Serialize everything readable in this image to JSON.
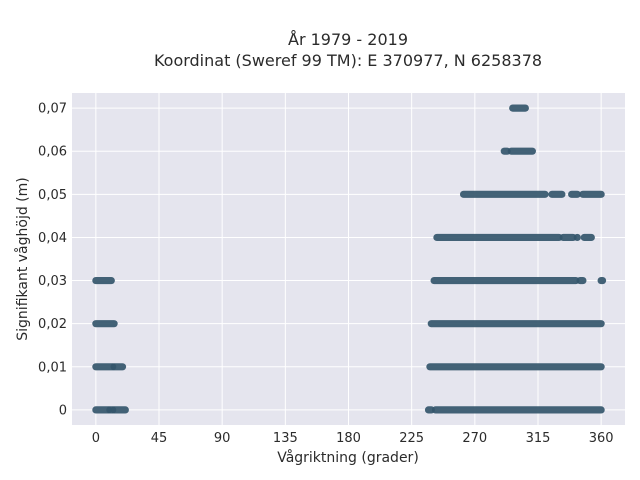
{
  "chart_data": {
    "type": "scatter",
    "title": "År 1979 - 2019",
    "subtitle": "Koordinat (Sweref 99 TM): E 370977, N 6258378",
    "xlabel": "Vågriktning (grader)",
    "ylabel": "Signifikant våghöjd (m)",
    "xlim": [
      -17,
      377
    ],
    "ylim": [
      -0.0035,
      0.0735
    ],
    "x_ticks": [
      0,
      45,
      90,
      135,
      180,
      225,
      270,
      315,
      360
    ],
    "x_tick_labels": [
      "0",
      "45",
      "90",
      "135",
      "180",
      "225",
      "270",
      "315",
      "360"
    ],
    "y_ticks": [
      0,
      0.01,
      0.02,
      0.03,
      0.04,
      0.05,
      0.06,
      0.07
    ],
    "y_tick_labels": [
      "0",
      "0,01",
      "0,02",
      "0,03",
      "0,04",
      "0,05",
      "0,06",
      "0,07"
    ],
    "grid": true,
    "legend": "none",
    "marker_color": "#34566b",
    "background_color": "#e5e5ee",
    "bands": [
      {
        "y": 0.0,
        "segments": [
          [
            0,
            9
          ],
          [
            10,
            12
          ],
          [
            13,
            21
          ],
          [
            237,
            239
          ],
          [
            242,
            360
          ]
        ]
      },
      {
        "y": 0.01,
        "segments": [
          [
            0,
            12
          ],
          [
            13,
            19
          ],
          [
            238,
            360
          ]
        ]
      },
      {
        "y": 0.02,
        "segments": [
          [
            0,
            13
          ],
          [
            239,
            360
          ]
        ]
      },
      {
        "y": 0.03,
        "segments": [
          [
            0,
            11
          ],
          [
            241,
            342
          ],
          [
            345,
            347
          ],
          [
            360,
            361
          ]
        ]
      },
      {
        "y": 0.04,
        "segments": [
          [
            243,
            330
          ],
          [
            333,
            340
          ],
          [
            343,
            343
          ],
          [
            348,
            353
          ]
        ]
      },
      {
        "y": 0.05,
        "segments": [
          [
            262,
            320
          ],
          [
            325,
            332
          ],
          [
            339,
            343
          ],
          [
            347,
            360
          ]
        ]
      },
      {
        "y": 0.06,
        "segments": [
          [
            291,
            293
          ],
          [
            296,
            311
          ]
        ]
      },
      {
        "y": 0.07,
        "segments": [
          [
            297,
            306
          ]
        ]
      }
    ]
  }
}
